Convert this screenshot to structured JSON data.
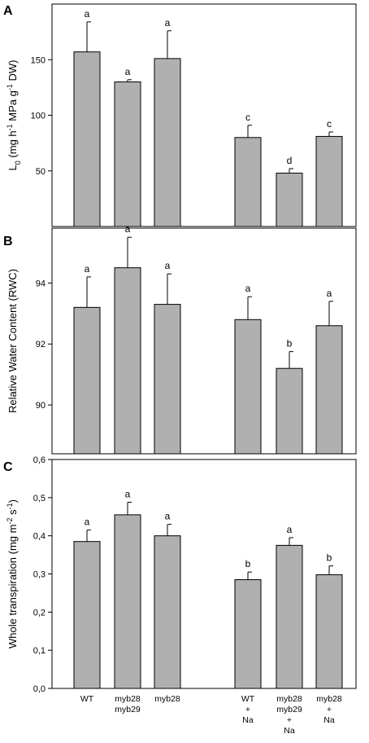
{
  "figure": {
    "categories": [
      [
        "WT"
      ],
      [
        "myb28",
        "myb29"
      ],
      [
        "myb28"
      ],
      [
        "WT",
        "+",
        "Na"
      ],
      [
        "myb28",
        "myb29",
        "+",
        "Na"
      ],
      [
        "myb28",
        "+",
        "Na"
      ]
    ]
  },
  "chart_data": [
    {
      "type": "bar",
      "panel": "A",
      "ylabel_parts": [
        "L",
        "0",
        " (mg h",
        "-1",
        " MPa g",
        "-1",
        " DW)"
      ],
      "ylim": [
        0,
        200
      ],
      "yticks": [
        50,
        100,
        150
      ],
      "ytick_labels": [
        "50",
        "100",
        "150"
      ],
      "values": [
        157,
        130,
        151,
        80,
        48,
        81
      ],
      "errors": [
        27,
        2,
        25,
        11,
        4,
        4
      ],
      "sig": [
        "a",
        "a",
        "a",
        "c",
        "d",
        "c"
      ],
      "bar_color": "#b0b0b0"
    },
    {
      "type": "bar",
      "panel": "B",
      "ylabel_parts": [
        "Relative Water Content (RWC)"
      ],
      "ylim": [
        88.4,
        95.8
      ],
      "yticks": [
        90,
        92,
        94
      ],
      "ytick_labels": [
        "90",
        "92",
        "94"
      ],
      "values": [
        93.2,
        94.5,
        93.3,
        92.8,
        91.2,
        92.6
      ],
      "errors": [
        1.0,
        1.0,
        1.0,
        0.75,
        0.55,
        0.8
      ],
      "sig": [
        "a",
        "a",
        "a",
        "a",
        "b",
        "a"
      ],
      "bar_color": "#b0b0b0"
    },
    {
      "type": "bar",
      "panel": "C",
      "ylabel_parts": [
        "Whole transpiration (mg m",
        "-2",
        " s",
        "-1",
        ")"
      ],
      "ylim": [
        0,
        0.6
      ],
      "yticks": [
        0.0,
        0.1,
        0.2,
        0.3,
        0.4,
        0.5,
        0.6
      ],
      "ytick_labels": [
        "0,0",
        "0,1",
        "0,2",
        "0,3",
        "0,4",
        "0,5",
        "0,6"
      ],
      "values": [
        0.385,
        0.455,
        0.4,
        0.285,
        0.375,
        0.298
      ],
      "errors": [
        0.03,
        0.033,
        0.03,
        0.02,
        0.02,
        0.023
      ],
      "sig": [
        "a",
        "a",
        "a",
        "b",
        "a",
        "b"
      ],
      "bar_color": "#b0b0b0"
    }
  ]
}
